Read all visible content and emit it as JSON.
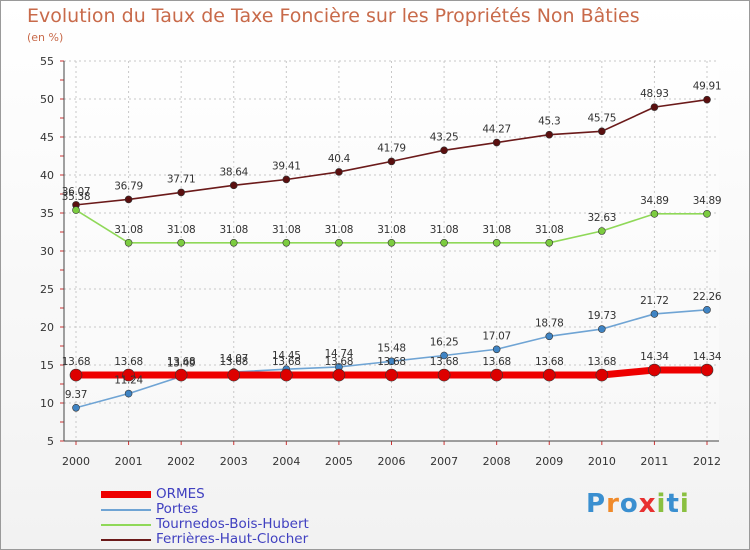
{
  "chart_data": {
    "type": "line",
    "title": "Evolution du Taux de Taxe Foncière sur les Propriétés Non Bâties",
    "ylabel": "(en %)",
    "xlabel": "",
    "x": [
      "2000",
      "2001",
      "2002",
      "2003",
      "2004",
      "2005",
      "2006",
      "2007",
      "2008",
      "2009",
      "2010",
      "2011",
      "2012"
    ],
    "ylim": [
      5,
      55
    ],
    "yticks": [
      5,
      10,
      15,
      20,
      25,
      30,
      35,
      40,
      45,
      50,
      55
    ],
    "grid": true,
    "series": [
      {
        "name": "Ferrières-Haut-Clocher",
        "color": "#6b1a1a",
        "marker": "#5a0f0f",
        "values": [
          36.07,
          36.79,
          37.71,
          38.64,
          39.41,
          40.4,
          41.79,
          43.25,
          44.27,
          45.3,
          45.75,
          48.93,
          49.91
        ],
        "labels": [
          "36.07",
          "36.79",
          "37.71",
          "38.64",
          "39.41",
          "40.4",
          "41.79",
          "43.25",
          "44.27",
          "45.3",
          "45.75",
          "48.93",
          "49.91"
        ]
      },
      {
        "name": "Tournedos-Bois-Hubert",
        "color": "#8fd858",
        "marker": "#7ccc40",
        "values": [
          35.38,
          31.08,
          31.08,
          31.08,
          31.08,
          31.08,
          31.08,
          31.08,
          31.08,
          31.08,
          32.63,
          34.89,
          34.89
        ],
        "labels": [
          "35.38",
          "31.08",
          "31.08",
          "31.08",
          "31.08",
          "31.08",
          "31.08",
          "31.08",
          "31.08",
          "31.08",
          "32.63",
          "34.89",
          "34.89"
        ]
      },
      {
        "name": "Portes",
        "color": "#6fa4d4",
        "marker": "#3f84c4",
        "values": [
          9.37,
          11.24,
          13.49,
          14.07,
          14.45,
          14.74,
          15.48,
          16.25,
          17.07,
          18.78,
          19.73,
          21.72,
          22.26
        ],
        "labels": [
          "9.37",
          "11.24",
          "13.49",
          "14.07",
          "14.45",
          "14.74",
          "15.48",
          "16.25",
          "17.07",
          "18.78",
          "19.73",
          "21.72",
          "22.26"
        ]
      },
      {
        "name": "ORMES",
        "color": "#ee0000",
        "marker": "#dd0000",
        "values": [
          13.68,
          13.68,
          13.68,
          13.68,
          13.68,
          13.68,
          13.68,
          13.68,
          13.68,
          13.68,
          13.68,
          14.34,
          14.34
        ],
        "labels": [
          "13.68",
          "13.68",
          "13.68",
          "13.68",
          "13.68",
          "13.68",
          "13.68",
          "13.68",
          "13.68",
          "13.68",
          "13.68",
          "14.34",
          "14.34"
        ]
      }
    ],
    "legend": [
      "ORMES",
      "Portes",
      "Tournedos-Bois-Hubert",
      "Ferrières-Haut-Clocher"
    ]
  },
  "logo": {
    "text": "Proxiti",
    "colors": [
      "#3a8fd0",
      "#f08a2a",
      "#3a8fd0",
      "#e83030",
      "#8ac040",
      "#3a8fd0",
      "#8ac040"
    ]
  }
}
